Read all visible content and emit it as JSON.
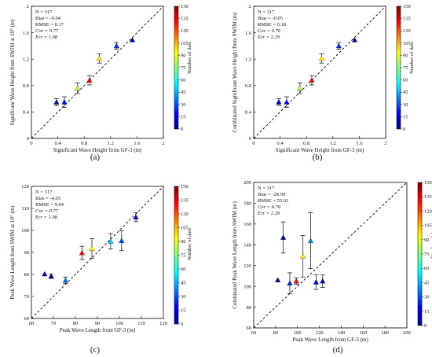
{
  "chart_data": [
    {
      "panel": "(a)",
      "type": "scatter",
      "xlabel": "Significant Wave Height from GF-3 (m)",
      "ylabel": "Significant Wave Height from SWIM at 10° (m)",
      "xlim": [
        0,
        2
      ],
      "ylim": [
        0,
        2
      ],
      "xticks": [
        "0",
        "0.4",
        "0.8",
        "1.2",
        "1.6",
        "2"
      ],
      "yticks": [
        "0",
        "0.4",
        "0.8",
        "1.2",
        "1.6",
        "2"
      ],
      "stats": [
        "N = 317",
        "Bias = -0.04",
        "RMSE = 0.17",
        "Cor = 0.77",
        "Err = 1.98"
      ],
      "colorbar": {
        "label": "Number of data",
        "min": 0,
        "max": 150,
        "ticks": [
          "0",
          "15",
          "30",
          "45",
          "60",
          "75",
          "90",
          "105",
          "120",
          "135",
          "150"
        ]
      },
      "points": [
        {
          "x": 0.38,
          "y": 0.55,
          "err": 0.05,
          "count": 10
        },
        {
          "x": 0.5,
          "y": 0.55,
          "err": 0.08,
          "count": 20
        },
        {
          "x": 0.7,
          "y": 0.76,
          "err": 0.08,
          "count": 85
        },
        {
          "x": 0.88,
          "y": 0.88,
          "err": 0.07,
          "count": 130
        },
        {
          "x": 1.03,
          "y": 1.21,
          "err": 0.07,
          "count": 95
        },
        {
          "x": 1.29,
          "y": 1.4,
          "err": 0.05,
          "count": 25
        },
        {
          "x": 1.53,
          "y": 1.49,
          "err": 0.0,
          "count": 3
        }
      ]
    },
    {
      "panel": "(b)",
      "type": "scatter",
      "xlabel": "Significant Wave Height from GF-3 (m)",
      "ylabel": "Combinated Significant Wave Height from SWIM (m)",
      "xlim": [
        0,
        2
      ],
      "ylim": [
        0,
        2
      ],
      "xticks": [
        "0",
        "0.4",
        "0.8",
        "1.2",
        "1.6",
        "2"
      ],
      "yticks": [
        "0",
        "0.4",
        "0.8",
        "1.2",
        "1.6",
        "2"
      ],
      "stats": [
        "N = 317",
        "Bias = -0.05",
        "RMSE = 0.18",
        "Cor = 0.76",
        "Err = 2.29"
      ],
      "colorbar": {
        "label": "Number of data",
        "min": 0,
        "max": 150,
        "ticks": [
          "0",
          "15",
          "30",
          "45",
          "60",
          "75",
          "90",
          "105",
          "120",
          "135",
          "150"
        ]
      },
      "points": [
        {
          "x": 0.38,
          "y": 0.55,
          "err": 0.05,
          "count": 10
        },
        {
          "x": 0.5,
          "y": 0.55,
          "err": 0.08,
          "count": 20
        },
        {
          "x": 0.7,
          "y": 0.76,
          "err": 0.08,
          "count": 85
        },
        {
          "x": 0.88,
          "y": 0.88,
          "err": 0.07,
          "count": 130
        },
        {
          "x": 1.03,
          "y": 1.21,
          "err": 0.07,
          "count": 95
        },
        {
          "x": 1.29,
          "y": 1.4,
          "err": 0.05,
          "count": 25
        },
        {
          "x": 1.53,
          "y": 1.49,
          "err": 0.0,
          "count": 3
        }
      ]
    },
    {
      "panel": "(c)",
      "type": "scatter",
      "xlabel": "Peak Wave Length from GF-3 (m)",
      "ylabel": "Peak Wave Length from SWIM at 10° (m)",
      "xlim": [
        60,
        120
      ],
      "ylim": [
        60,
        120
      ],
      "xticks": [
        "60",
        "70",
        "80",
        "90",
        "100",
        "110",
        "120"
      ],
      "yticks": [
        "60",
        "70",
        "80",
        "90",
        "100",
        "110",
        "120"
      ],
      "stats": [
        "N = 317",
        "Bias = -4.05",
        "RMSE = 9.94",
        "Cor = 0.77",
        "Err = 1.98"
      ],
      "colorbar": {
        "label": "Number of data",
        "min": 0,
        "max": 150,
        "ticks": [
          "0",
          "15",
          "30",
          "45",
          "60",
          "75",
          "90",
          "105",
          "120",
          "135",
          "150"
        ]
      },
      "points": [
        {
          "x": 66,
          "y": 80.2,
          "err": 0.0,
          "count": 5
        },
        {
          "x": 69,
          "y": 79.2,
          "err": 1.0,
          "count": 3
        },
        {
          "x": 75.5,
          "y": 77.3,
          "err": 1.5,
          "count": 35
        },
        {
          "x": 83,
          "y": 89.8,
          "err": 3.0,
          "count": 130
        },
        {
          "x": 87.5,
          "y": 91.8,
          "err": 4.5,
          "count": 95
        },
        {
          "x": 96,
          "y": 95.0,
          "err": 3.5,
          "count": 50
        },
        {
          "x": 101,
          "y": 95.3,
          "err": 4.5,
          "count": 30
        },
        {
          "x": 107.5,
          "y": 106.0,
          "err": 2.0,
          "count": 10
        }
      ]
    },
    {
      "panel": "(d)",
      "type": "scatter",
      "xlabel": "Peak Wave Length from GF-3 (m)",
      "ylabel": "Combinated Peak Wave Length from SWIM (m)",
      "xlim": [
        60,
        200
      ],
      "ylim": [
        60,
        200
      ],
      "xticks": [
        "60",
        "80",
        "100",
        "120",
        "140",
        "160",
        "180",
        "200"
      ],
      "yticks": [
        "60",
        "80",
        "100",
        "120",
        "140",
        "160",
        "180",
        "200"
      ],
      "stats": [
        "N = 317",
        "Bias = -28.99",
        "RMSE = 55.02",
        "Cor = 0.76",
        "Err = 2.29"
      ],
      "colorbar": {
        "label": "Number of data",
        "min": 0,
        "max": 150,
        "ticks": [
          "0",
          "15",
          "30",
          "45",
          "60",
          "75",
          "90",
          "105",
          "120",
          "135",
          "150"
        ]
      },
      "points": [
        {
          "x": 82,
          "y": 106,
          "err": 0.0,
          "count": 5
        },
        {
          "x": 87,
          "y": 147,
          "err": 15,
          "count": 8
        },
        {
          "x": 93,
          "y": 103,
          "err": 10,
          "count": 25
        },
        {
          "x": 99,
          "y": 105,
          "err": 3,
          "count": 130
        },
        {
          "x": 105,
          "y": 129,
          "err": 20,
          "count": 95
        },
        {
          "x": 112,
          "y": 144,
          "err": 27,
          "count": 40
        },
        {
          "x": 117,
          "y": 104,
          "err": 7,
          "count": 20
        },
        {
          "x": 123,
          "y": 105,
          "err": 6,
          "count": 10
        }
      ]
    }
  ],
  "colorbar_colors": [
    "#00008f",
    "#0000ff",
    "#0080ff",
    "#00ffff",
    "#80ff80",
    "#ffff00",
    "#ff8000",
    "#ff0000",
    "#800000"
  ],
  "error_bar_color": "#222222",
  "one_to_one_line": "dashed"
}
